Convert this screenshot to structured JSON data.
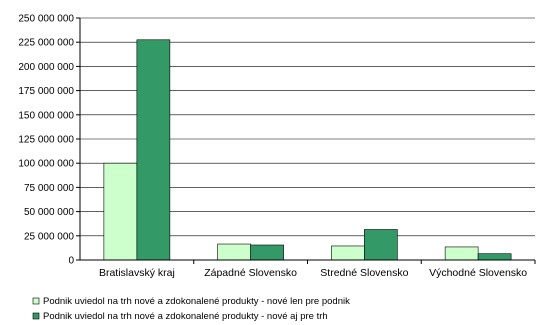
{
  "chart_data": {
    "type": "bar",
    "categories": [
      "Bratislavský kraj",
      "Západné Slovensko",
      "Stredné Slovensko",
      "Východné Slovensko"
    ],
    "series": [
      {
        "name": "Podnik uviedol na trh nové a zdokonalené produkty - nové len pre podnik",
        "color": "#ccffcc",
        "values": [
          100000000,
          16500000,
          14500000,
          13500000
        ]
      },
      {
        "name": "Podnik uviedol na trh nové a zdokonalené produkty - nové aj pre trh",
        "color": "#339966",
        "values": [
          227500000,
          15500000,
          31500000,
          6500000
        ]
      }
    ],
    "ylim": [
      0,
      250000000
    ],
    "yticks": [
      "0",
      "25 000 000",
      "50 000 000",
      "75 000 000",
      "100 000 000",
      "125 000 000",
      "150 000 000",
      "175 000 000",
      "200 000 000",
      "225 000 000",
      "250 000 000"
    ],
    "grid": true,
    "legend_position": "bottom-left"
  }
}
